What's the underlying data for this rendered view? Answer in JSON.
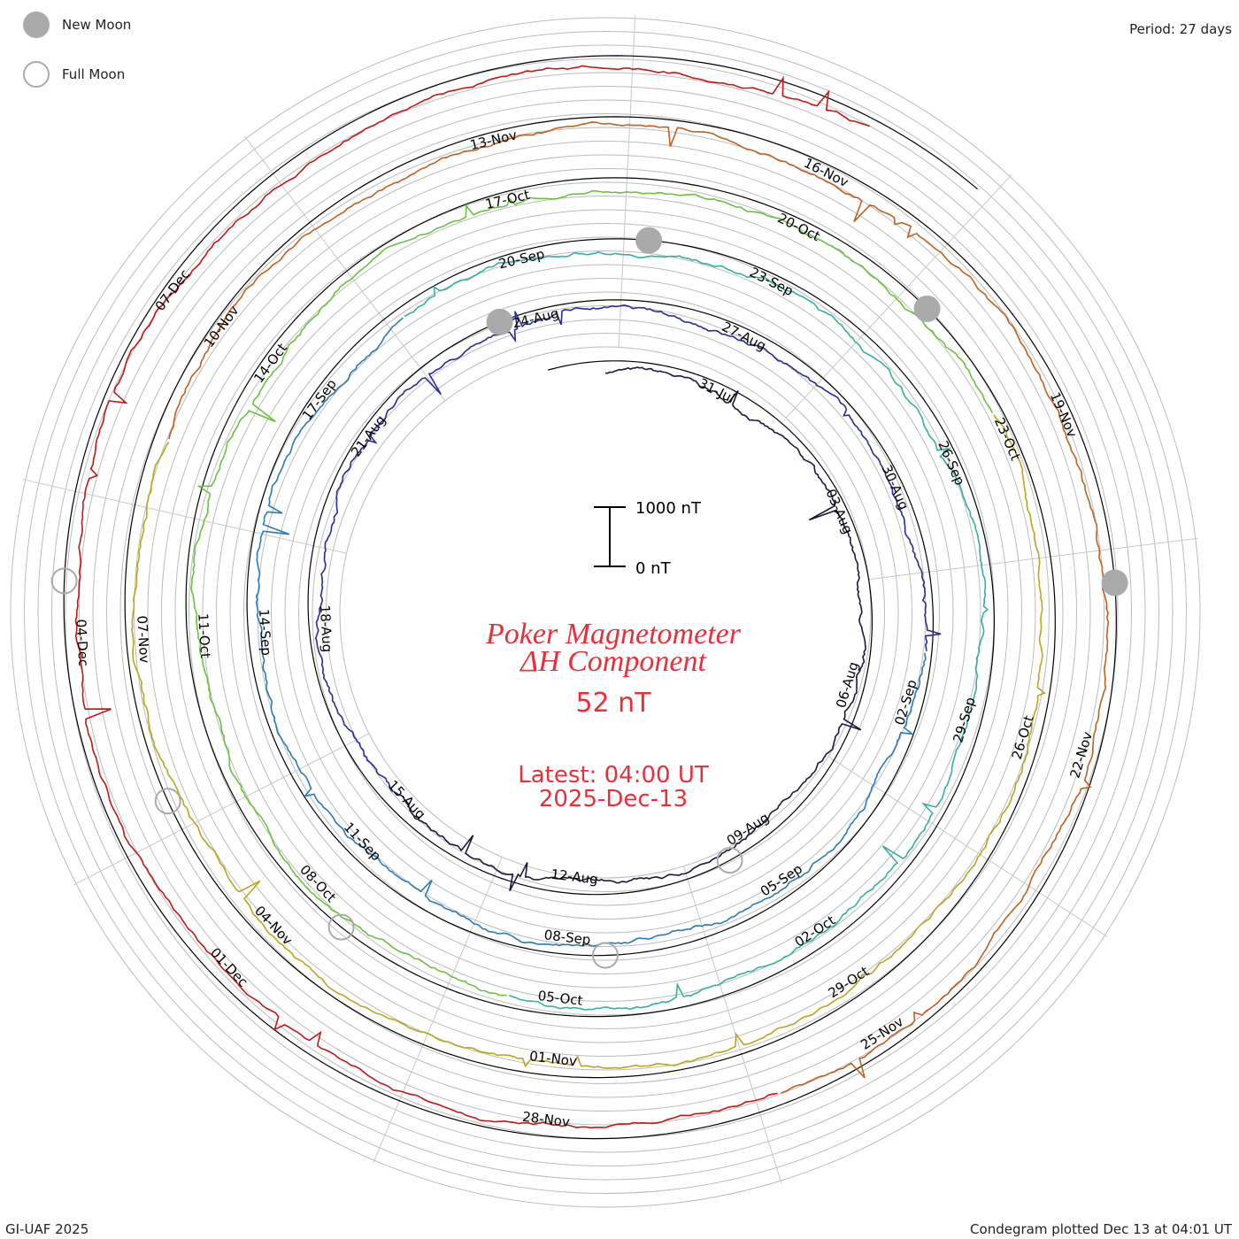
{
  "legend": {
    "new_moon": "New Moon",
    "full_moon": "Full Moon"
  },
  "period": "Period: 27 days",
  "footer_left": "GI-UAF 2025",
  "footer_right": "Condegram plotted Dec 13 at 04:01 UT",
  "colors": {
    "title": "#e8303a",
    "ring": "#bbbbbb",
    "baseline": "#000000",
    "moon": "#aaaaaa"
  },
  "chart_data": {
    "type": "line",
    "title": "Poker Magnetometer",
    "subtitle": "ΔH Component",
    "current_value": "52 nT",
    "latest_line1": "Latest: 04:00 UT",
    "latest_line2": "2025-Dec-13",
    "scale_bar": {
      "top_label": "1000 nT",
      "bottom_label": "0 nT",
      "range_nT": [
        0,
        1000
      ]
    },
    "period_days": 27,
    "start_date": "2025-07-29",
    "end_date": "2025-12-13",
    "series": [
      {
        "color": "#1a1a3a",
        "start": "2025-07-29",
        "end": "2025-08-25"
      },
      {
        "color": "#2a2a96",
        "start": "2025-08-25",
        "end": "2025-09-21"
      },
      {
        "color": "#2a7ab8",
        "start": "2025-09-21",
        "end": "2025-10-18"
      },
      {
        "color": "#35b0a0",
        "start": "2025-10-18",
        "end": "2025-11-14"
      },
      {
        "color": "#9cbe2a",
        "start": "2025-11-14",
        "end": "2025-12-11"
      },
      {
        "color": "#c06020",
        "start": "2025-12-11",
        "end": "2025-12-13"
      }
    ],
    "ring_colors": [
      "#1a1a3a",
      "#2a2a96",
      "#2a7ab8",
      "#35b0a0",
      "#6cc040",
      "#b8a520",
      "#c06020",
      "#c01818"
    ],
    "date_labels": [
      [
        "31-Jul",
        "03-Aug",
        "06-Aug",
        "09-Aug",
        "12-Aug",
        "15-Aug",
        "18-Aug",
        "21-Aug",
        "24-Aug"
      ],
      [
        "27-Aug",
        "30-Aug",
        "02-Sep",
        "05-Sep",
        "08-Sep",
        "11-Sep",
        "14-Sep",
        "17-Sep",
        "20-Sep"
      ],
      [
        "23-Sep",
        "26-Sep",
        "29-Sep",
        "02-Oct",
        "05-Oct",
        "08-Oct",
        "11-Oct",
        "14-Oct",
        "17-Oct"
      ],
      [
        "20-Oct",
        "23-Oct",
        "26-Oct",
        "29-Oct",
        "01-Nov",
        "04-Nov",
        "07-Nov",
        "10-Nov",
        "13-Nov"
      ],
      [
        "16-Nov",
        "19-Nov",
        "22-Nov",
        "25-Nov",
        "28-Nov",
        "01-Dec",
        "04-Dec",
        "07-Dec"
      ]
    ],
    "new_moons": [
      "2025-08-23",
      "2025-09-21",
      "2025-10-21",
      "2025-11-20"
    ],
    "full_moons": [
      "2025-08-09",
      "2025-09-07",
      "2025-10-07",
      "2025-11-05",
      "2025-12-04"
    ]
  }
}
